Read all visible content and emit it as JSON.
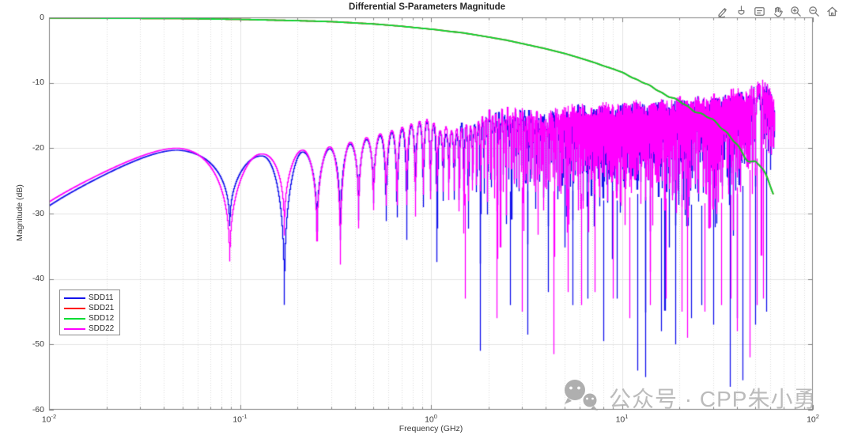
{
  "figure": {
    "title": "Differential S-Parameters Magnitude",
    "toolbar_icons": [
      "edit-plot",
      "brush-data",
      "data-tips",
      "pan",
      "zoom-in",
      "zoom-out",
      "restore-view"
    ],
    "watermark": {
      "text": "公众号 · CPP朱小勇",
      "icon": "wechat"
    }
  },
  "chart_data": {
    "type": "line",
    "title": "Differential S-Parameters Magnitude",
    "xlabel": "Frequency (GHz)",
    "ylabel": "Magnitude (dB)",
    "xscale": "log",
    "xlim": [
      0.01,
      100
    ],
    "ylim": [
      -60,
      0
    ],
    "x_ticks": [
      {
        "base": "10",
        "exp": "-2"
      },
      {
        "base": "10",
        "exp": "-1"
      },
      {
        "base": "10",
        "exp": "0"
      },
      {
        "base": "10",
        "exp": "1"
      },
      {
        "base": "10",
        "exp": "2"
      }
    ],
    "y_ticks": [
      "0",
      "-10",
      "-20",
      "-30",
      "-40",
      "-50",
      "-60"
    ],
    "grid": {
      "major": true,
      "minor_x": true
    },
    "legend": {
      "position": "lower-left",
      "items": [
        "SDD11",
        "SDD21",
        "SDD12",
        "SDD22"
      ]
    },
    "data_end_ghz": 63,
    "resonance_spacing_ghz": 0.082,
    "first_dip_ghz": 0.088,
    "series": [
      {
        "name": "SDD11",
        "color": "#1414EB",
        "style": "resonant",
        "seed": 11,
        "start_db": -28.8,
        "peak_envelope": [
          [
            0.047,
            -20.3
          ],
          [
            0.129,
            -21.2
          ],
          [
            0.211,
            -20.6
          ],
          [
            0.293,
            -20.1
          ],
          [
            0.375,
            -19.4
          ],
          [
            0.457,
            -18.7
          ],
          [
            0.539,
            -18.1
          ],
          [
            0.621,
            -17.6
          ],
          [
            0.703,
            -17.1
          ],
          [
            0.785,
            -16.6
          ],
          [
            0.867,
            -16.2
          ],
          [
            0.949,
            -15.9
          ],
          [
            1.1,
            -17.0
          ],
          [
            1.3,
            -18.0
          ],
          [
            1.6,
            -16.5
          ],
          [
            2,
            -15.2
          ],
          [
            2.5,
            -14.8
          ],
          [
            3,
            -15.2
          ],
          [
            4,
            -15.6
          ],
          [
            5,
            -14.9
          ],
          [
            6,
            -14.3
          ],
          [
            7,
            -15.1
          ],
          [
            8,
            -14.1
          ],
          [
            9,
            -14.6
          ],
          [
            10,
            -14.2
          ],
          [
            12,
            -13.9
          ],
          [
            14,
            -14.6
          ],
          [
            16,
            -13.6
          ],
          [
            18,
            -14.1
          ],
          [
            20,
            -13.3
          ],
          [
            22,
            -14.2
          ],
          [
            25,
            -13.1
          ],
          [
            28,
            -13.9
          ],
          [
            30,
            -12.9
          ],
          [
            33,
            -13.6
          ],
          [
            36,
            -12.6
          ],
          [
            40,
            -12.1
          ],
          [
            44,
            -12.9
          ],
          [
            48,
            -11.6
          ],
          [
            52,
            -11.1
          ],
          [
            55,
            -10.6
          ],
          [
            58,
            -11.6
          ],
          [
            60,
            -12.2
          ],
          [
            63,
            -14.8
          ]
        ],
        "low_freq_dips_db": [
          -40,
          -34,
          -47,
          -36,
          -36.5,
          -33,
          -31.5,
          -35,
          -36,
          -38,
          -30.5,
          -34,
          -31
        ],
        "typical_dip_floor": [
          [
            1,
            -29
          ],
          [
            1.5,
            -31
          ],
          [
            2,
            -32
          ],
          [
            3,
            -33
          ],
          [
            4,
            -31
          ],
          [
            5,
            -33
          ],
          [
            6,
            -32
          ],
          [
            8,
            -34
          ],
          [
            10,
            -34
          ],
          [
            12,
            -33
          ],
          [
            15,
            -34
          ],
          [
            18,
            -33
          ],
          [
            20,
            -34
          ],
          [
            25,
            -35
          ],
          [
            30,
            -34
          ],
          [
            35,
            -35
          ],
          [
            40,
            -33
          ],
          [
            45,
            -31
          ],
          [
            50,
            -29
          ],
          [
            55,
            -27
          ],
          [
            60,
            -25
          ],
          [
            63,
            -23
          ]
        ],
        "deep_dips": [
          [
            1.8,
            -51
          ],
          [
            2.6,
            -44
          ],
          [
            3.2,
            -48.5
          ],
          [
            4.1,
            -42
          ],
          [
            5.5,
            -44
          ],
          [
            6.6,
            -43
          ],
          [
            8.0,
            -49.5
          ],
          [
            9.4,
            -43
          ],
          [
            12.0,
            -54
          ],
          [
            13.3,
            -55
          ],
          [
            16,
            -48
          ],
          [
            19,
            -50
          ],
          [
            23,
            -46
          ],
          [
            26,
            -44
          ],
          [
            30,
            -47
          ],
          [
            36.6,
            -56.5
          ],
          [
            40,
            -46
          ],
          [
            43,
            -55.5
          ],
          [
            50,
            -47
          ],
          [
            57,
            -45
          ]
        ]
      },
      {
        "name": "SDD21",
        "color": "#FF0000",
        "style": "smooth",
        "seed": 21,
        "points": [
          [
            0.01,
            -0.1
          ],
          [
            0.02,
            -0.12
          ],
          [
            0.05,
            -0.18
          ],
          [
            0.1,
            -0.3
          ],
          [
            0.2,
            -0.5
          ],
          [
            0.3,
            -0.65
          ],
          [
            0.5,
            -1.0
          ],
          [
            0.7,
            -1.35
          ],
          [
            1.0,
            -1.8
          ],
          [
            1.5,
            -2.4
          ],
          [
            2,
            -3.0
          ],
          [
            2.5,
            -3.5
          ],
          [
            3,
            -4.0
          ],
          [
            4,
            -4.8
          ],
          [
            5,
            -5.5
          ],
          [
            6,
            -6.2
          ],
          [
            7,
            -6.8
          ],
          [
            8,
            -7.4
          ],
          [
            9,
            -7.9
          ],
          [
            10,
            -8.4
          ],
          [
            12,
            -9.5
          ],
          [
            14,
            -10.5
          ],
          [
            16,
            -11.4
          ],
          [
            18,
            -12.2
          ],
          [
            20,
            -12.9
          ],
          [
            22,
            -13.6
          ],
          [
            25,
            -14.5
          ],
          [
            28,
            -15.3
          ],
          [
            30,
            -15.8
          ],
          [
            32,
            -16.3
          ],
          [
            34,
            -17.0
          ],
          [
            36,
            -17.8
          ],
          [
            38,
            -18.7
          ],
          [
            40,
            -19.6
          ],
          [
            42,
            -20.6
          ],
          [
            44,
            -21.4
          ],
          [
            46,
            -21.9
          ],
          [
            48,
            -22.0
          ],
          [
            50,
            -21.8
          ],
          [
            52,
            -22.2
          ],
          [
            54,
            -23.0
          ],
          [
            56,
            -24.0
          ],
          [
            58,
            -25.0
          ],
          [
            60,
            -26.0
          ],
          [
            63,
            -27.5
          ]
        ]
      },
      {
        "name": "SDD12",
        "color": "#00DC32",
        "style": "smooth",
        "seed": 12,
        "points": [
          [
            0.01,
            -0.1
          ],
          [
            0.02,
            -0.12
          ],
          [
            0.05,
            -0.18
          ],
          [
            0.1,
            -0.3
          ],
          [
            0.2,
            -0.5
          ],
          [
            0.3,
            -0.65
          ],
          [
            0.5,
            -1.0
          ],
          [
            0.7,
            -1.35
          ],
          [
            1.0,
            -1.8
          ],
          [
            1.5,
            -2.4
          ],
          [
            2,
            -3.0
          ],
          [
            2.5,
            -3.5
          ],
          [
            3,
            -4.0
          ],
          [
            4,
            -4.8
          ],
          [
            5,
            -5.5
          ],
          [
            6,
            -6.2
          ],
          [
            7,
            -6.8
          ],
          [
            8,
            -7.4
          ],
          [
            9,
            -7.9
          ],
          [
            10,
            -8.4
          ],
          [
            12,
            -9.5
          ],
          [
            14,
            -10.5
          ],
          [
            16,
            -11.4
          ],
          [
            18,
            -12.2
          ],
          [
            20,
            -12.9
          ],
          [
            22,
            -13.6
          ],
          [
            25,
            -14.5
          ],
          [
            28,
            -15.3
          ],
          [
            30,
            -15.8
          ],
          [
            32,
            -16.3
          ],
          [
            34,
            -17.0
          ],
          [
            36,
            -17.8
          ],
          [
            38,
            -18.7
          ],
          [
            40,
            -19.6
          ],
          [
            42,
            -20.6
          ],
          [
            44,
            -21.4
          ],
          [
            46,
            -21.9
          ],
          [
            48,
            -22.0
          ],
          [
            50,
            -21.8
          ],
          [
            52,
            -22.2
          ],
          [
            54,
            -23.0
          ],
          [
            56,
            -24.0
          ],
          [
            58,
            -25.0
          ],
          [
            60,
            -26.0
          ],
          [
            63,
            -27.5
          ]
        ]
      },
      {
        "name": "SDD22",
        "color": "#FF00FF",
        "style": "resonant",
        "seed": 22,
        "start_db": -28.4,
        "peak_envelope": [
          [
            0.047,
            -20.0
          ],
          [
            0.129,
            -20.9
          ],
          [
            0.211,
            -20.3
          ],
          [
            0.293,
            -19.8
          ],
          [
            0.375,
            -19.1
          ],
          [
            0.457,
            -18.4
          ],
          [
            0.539,
            -17.8
          ],
          [
            0.621,
            -17.3
          ],
          [
            0.703,
            -16.8
          ],
          [
            0.785,
            -16.3
          ],
          [
            0.867,
            -15.9
          ],
          [
            0.949,
            -15.6
          ],
          [
            1.1,
            -16.6
          ],
          [
            1.3,
            -17.6
          ],
          [
            1.6,
            -16.1
          ],
          [
            2,
            -14.9
          ],
          [
            2.5,
            -14.5
          ],
          [
            3,
            -14.9
          ],
          [
            4,
            -15.2
          ],
          [
            5,
            -14.6
          ],
          [
            6,
            -14.0
          ],
          [
            7,
            -14.7
          ],
          [
            8,
            -13.8
          ],
          [
            9,
            -14.3
          ],
          [
            10,
            -13.9
          ],
          [
            12,
            -13.6
          ],
          [
            14,
            -14.2
          ],
          [
            16,
            -13.3
          ],
          [
            18,
            -13.8
          ],
          [
            20,
            -13.0
          ],
          [
            22,
            -13.8
          ],
          [
            25,
            -12.8
          ],
          [
            28,
            -13.5
          ],
          [
            30,
            -12.6
          ],
          [
            33,
            -13.2
          ],
          [
            36,
            -12.2
          ],
          [
            40,
            -11.8
          ],
          [
            44,
            -12.5
          ],
          [
            48,
            -11.3
          ],
          [
            52,
            -10.8
          ],
          [
            55,
            -10.4
          ],
          [
            58,
            -11.2
          ],
          [
            60,
            -11.9
          ],
          [
            63,
            -14.2
          ]
        ],
        "low_freq_dips_db": [
          -39,
          -40.5,
          -35,
          -38,
          -41,
          -34.5,
          -33,
          -32,
          -33.5,
          -31.5,
          -36,
          -31.5,
          -33
        ],
        "typical_dip_floor": [
          [
            1,
            -30
          ],
          [
            1.5,
            -33
          ],
          [
            2,
            -31
          ],
          [
            3,
            -32
          ],
          [
            4,
            -33
          ],
          [
            5,
            -32
          ],
          [
            6,
            -33
          ],
          [
            8,
            -32
          ],
          [
            10,
            -33
          ],
          [
            12,
            -34
          ],
          [
            15,
            -33
          ],
          [
            18,
            -34
          ],
          [
            20,
            -33
          ],
          [
            25,
            -34
          ],
          [
            30,
            -35
          ],
          [
            35,
            -34
          ],
          [
            40,
            -32
          ],
          [
            45,
            -30
          ],
          [
            50,
            -28
          ],
          [
            55,
            -26
          ],
          [
            60,
            -24
          ],
          [
            63,
            -22
          ]
        ],
        "deep_dips": [
          [
            1.5,
            -43
          ],
          [
            2.2,
            -46
          ],
          [
            3.0,
            -45
          ],
          [
            4.4,
            -51.5
          ],
          [
            5.2,
            -42
          ],
          [
            6.1,
            -44
          ],
          [
            7.2,
            -42
          ],
          [
            9.0,
            -43
          ],
          [
            11,
            -46
          ],
          [
            14,
            -44
          ],
          [
            17,
            -43
          ],
          [
            20.5,
            -45
          ],
          [
            22,
            -49
          ],
          [
            27,
            -45
          ],
          [
            33,
            -44
          ],
          [
            37,
            -43
          ],
          [
            40,
            -48
          ],
          [
            46.6,
            -52
          ],
          [
            51,
            -44
          ],
          [
            55,
            -43
          ]
        ]
      }
    ],
    "draw_order": [
      "SDD11",
      "SDD22",
      "SDD21",
      "SDD12"
    ]
  }
}
